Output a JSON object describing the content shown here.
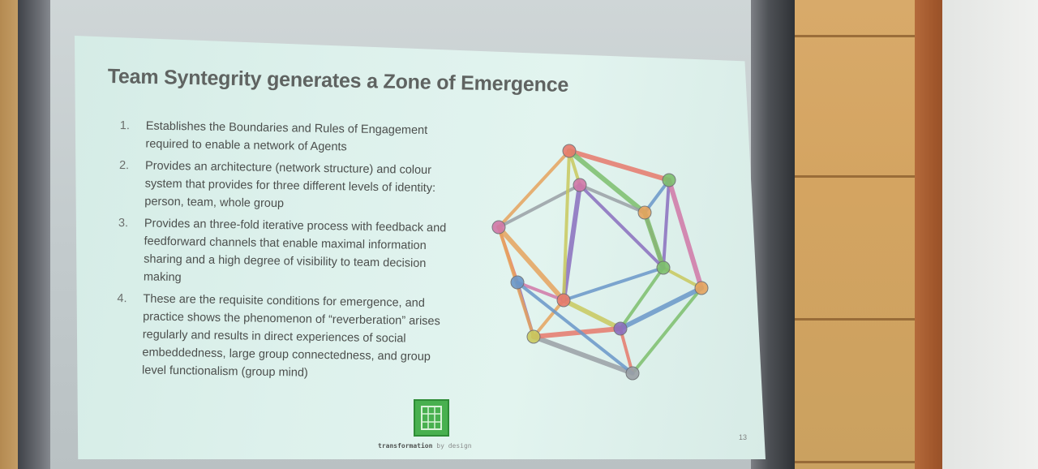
{
  "slide": {
    "title": "Team Syntegrity generates a Zone of Emergence",
    "points": [
      {
        "number": "1.",
        "text": "Establishes the Boundaries and Rules of Engagement required to enable a network of Agents"
      },
      {
        "number": "2.",
        "text": "Provides an architecture (network structure) and colour system that provides for three different levels of identity: person, team, whole group"
      },
      {
        "number": "3.",
        "text": "Provides an three-fold iterative process with feedback and feedforward channels that enable maximal information sharing and a high degree of visibility to team decision making"
      },
      {
        "number": "4.",
        "text": "These are the requisite conditions for emergence, and practice shows the phenomenon of “reverberation” arises regularly and results in direct experiences of social embeddedness, large group connectedness, and group level functionalism (group mind)"
      }
    ],
    "footer_brand_bold": "transformation",
    "footer_brand_light": "by design",
    "page_number": "13",
    "icosahedron_strut_colors": [
      "#e77a6c",
      "#e6a45e",
      "#c9c95e",
      "#7dbf6d",
      "#6a97c9",
      "#8a6fbf",
      "#d178a8",
      "#9aa0a6"
    ]
  }
}
